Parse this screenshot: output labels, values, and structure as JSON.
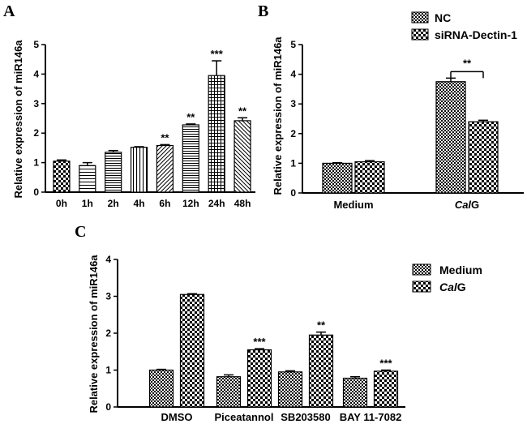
{
  "chart_data": [
    {
      "panel": "A",
      "type": "bar",
      "ylabel": "Relative expression of miR146a",
      "xlabel": "",
      "ylim": [
        0,
        5
      ],
      "yticks": [
        0,
        1,
        2,
        3,
        4,
        5
      ],
      "categories": [
        "0h",
        "1h",
        "2h",
        "4h",
        "6h",
        "12h",
        "24h",
        "48h"
      ],
      "values": [
        1.05,
        0.9,
        1.35,
        1.52,
        1.58,
        2.28,
        3.95,
        2.42
      ],
      "errors": [
        0.04,
        0.1,
        0.06,
        0.02,
        0.03,
        0.03,
        0.5,
        0.1
      ],
      "significance": [
        "",
        "",
        "",
        "",
        "**",
        "**",
        "***",
        "**"
      ],
      "patterns": [
        "checker",
        "hlines",
        "hlines-dense",
        "vlines",
        "diag",
        "hlines-dense",
        "grid",
        "diag-back"
      ]
    },
    {
      "panel": "B",
      "type": "bar",
      "ylabel": "Relative expression of miR146a",
      "ylim": [
        0,
        5
      ],
      "yticks": [
        0,
        1,
        2,
        3,
        4,
        5
      ],
      "categories": [
        "Medium",
        "CalG"
      ],
      "series": [
        {
          "name": "NC",
          "values": [
            1.0,
            3.75
          ],
          "errors": [
            0.02,
            0.12
          ]
        },
        {
          "name": "siRNA-Dectin-1",
          "values": [
            1.05,
            2.4
          ],
          "errors": [
            0.04,
            0.05
          ]
        }
      ],
      "bracket": {
        "category": "CalG",
        "label": "**"
      },
      "legend_position": "top-right"
    },
    {
      "panel": "C",
      "type": "bar",
      "ylabel": "Relative expression of miR146a",
      "ylim": [
        0,
        4
      ],
      "yticks": [
        0,
        1,
        2,
        3,
        4
      ],
      "categories": [
        "DMSO",
        "Piceatannol",
        "SB203580",
        "BAY 11-7082"
      ],
      "series": [
        {
          "name": "Medium",
          "values": [
            1.0,
            0.82,
            0.95,
            0.78
          ],
          "errors": [
            0.02,
            0.05,
            0.03,
            0.04
          ]
        },
        {
          "name": "CalG",
          "values": [
            3.05,
            1.55,
            1.95,
            0.97
          ],
          "errors": [
            0.02,
            0.03,
            0.08,
            0.03
          ],
          "significance": [
            "",
            "***",
            "**",
            "***"
          ]
        }
      ],
      "legend_position": "right"
    }
  ],
  "labels": {
    "panel_a": "A",
    "panel_b": "B",
    "panel_c": "C",
    "cal": "Cal",
    "g": "G"
  }
}
